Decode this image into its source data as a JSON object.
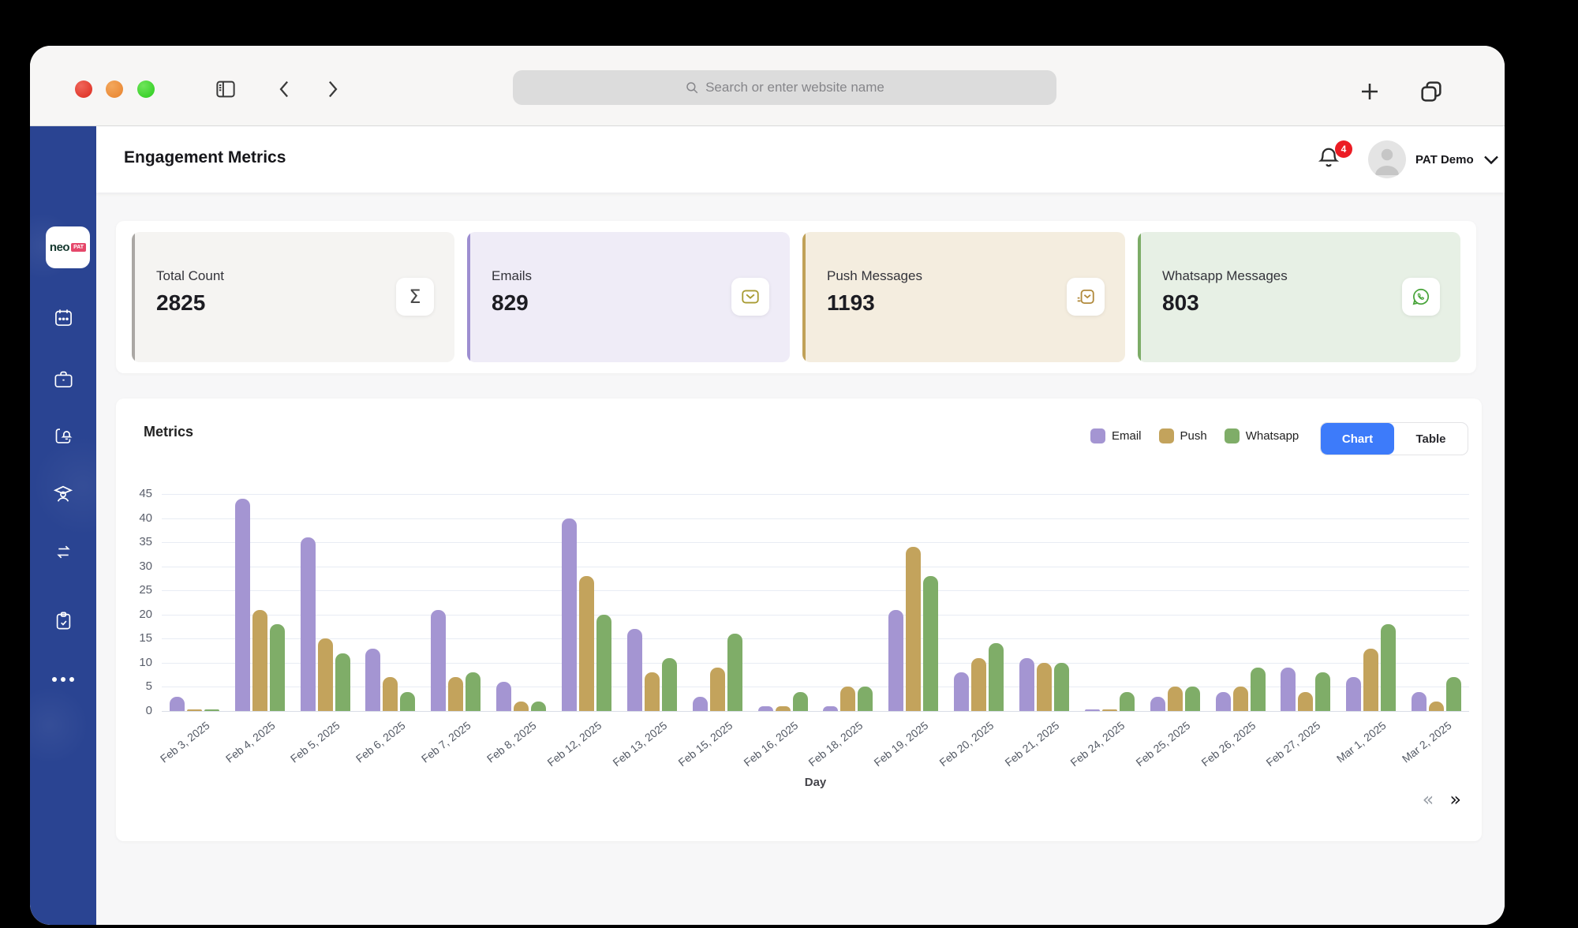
{
  "browser": {
    "search_placeholder": "Search or enter website name"
  },
  "sidebar": {
    "logo_text": "neo",
    "logo_badge": "PAT",
    "items": [
      {
        "icon": "calendar-icon"
      },
      {
        "icon": "briefcase-icon"
      },
      {
        "icon": "notification-board-icon"
      },
      {
        "icon": "graduate-icon"
      },
      {
        "icon": "swap-arrows-icon"
      },
      {
        "icon": "clipboard-check-icon"
      },
      {
        "icon": "ellipsis-icon"
      }
    ]
  },
  "header": {
    "title": "Engagement Metrics",
    "notification_count": 4,
    "user_name": "PAT Demo"
  },
  "cards": [
    {
      "label": "Total Count",
      "value": 2825,
      "icon": "sigma-icon",
      "bg": "#f5f4f2",
      "accent": "#aaa7a4",
      "icon_color": "#4a4a4a"
    },
    {
      "label": "Emails",
      "value": 829,
      "icon": "envelope-icon",
      "bg": "#efecf7",
      "accent": "#9d8ed1",
      "icon_color": "#a89b33"
    },
    {
      "label": "Push Messages",
      "value": 1193,
      "icon": "push-message-icon",
      "bg": "#f4eddf",
      "accent": "#c0a158",
      "icon_color": "#b18a3c"
    },
    {
      "label": "Whatsapp Messages",
      "value": 803,
      "icon": "whatsapp-icon",
      "bg": "#e7f0e5",
      "accent": "#7cac67",
      "icon_color": "#4aa53c"
    }
  ],
  "metrics": {
    "title": "Metrics",
    "legend": [
      {
        "label": "Email",
        "color": "#a495d2"
      },
      {
        "label": "Push",
        "color": "#c3a35c"
      },
      {
        "label": "Whatsapp",
        "color": "#7fad68"
      }
    ],
    "view_toggle": {
      "options": [
        "Chart",
        "Table"
      ],
      "active": "Chart"
    },
    "pagination": {
      "prev": "«",
      "next": "»"
    }
  },
  "chart_data": {
    "type": "bar",
    "title": "Metrics",
    "xlabel": "Day",
    "ylabel": "",
    "ylim": [
      0,
      45
    ],
    "y_ticks": [
      0,
      5,
      10,
      15,
      20,
      25,
      30,
      35,
      40,
      45
    ],
    "grid": true,
    "legend_position": "top-right",
    "categories": [
      "Feb 3, 2025",
      "Feb 4, 2025",
      "Feb 5, 2025",
      "Feb 6, 2025",
      "Feb 7, 2025",
      "Feb 8, 2025",
      "Feb 12, 2025",
      "Feb 13, 2025",
      "Feb 15, 2025",
      "Feb 16, 2025",
      "Feb 18, 2025",
      "Feb 19, 2025",
      "Feb 20, 2025",
      "Feb 21, 2025",
      "Feb 24, 2025",
      "Feb 25, 2025",
      "Feb 26, 2025",
      "Feb 27, 2025",
      "Mar 1, 2025",
      "Mar 2, 2025"
    ],
    "series": [
      {
        "name": "Email",
        "color": "#a495d2",
        "values": [
          3,
          44,
          36,
          13,
          21,
          6,
          40,
          17,
          3,
          1,
          1,
          21,
          8,
          11,
          0,
          3,
          4,
          9,
          7,
          4
        ]
      },
      {
        "name": "Push",
        "color": "#c3a35c",
        "values": [
          0,
          21,
          15,
          7,
          7,
          2,
          28,
          8,
          9,
          1,
          5,
          34,
          11,
          10,
          0,
          5,
          5,
          4,
          13,
          2
        ]
      },
      {
        "name": "Whatsapp",
        "color": "#7fad68",
        "values": [
          0,
          18,
          12,
          4,
          8,
          2,
          20,
          11,
          16,
          4,
          5,
          28,
          14,
          10,
          4,
          5,
          9,
          8,
          18,
          7
        ]
      }
    ]
  }
}
